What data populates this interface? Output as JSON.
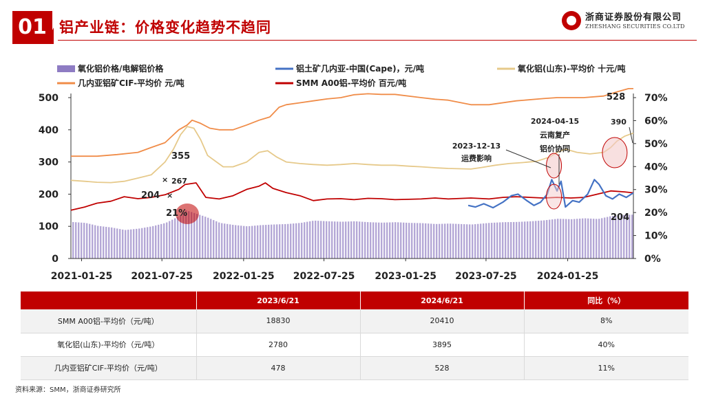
{
  "header": {
    "number": "01",
    "title": "铝产业链：价格变化趋势不趋同",
    "logo_cn": "浙商证券股份有限公司",
    "logo_en": "ZHESHANG SECURITIES CO.LTD"
  },
  "chart_data": {
    "type": "line",
    "x_tick_labels": [
      "2021-01-25",
      "2021-07-25",
      "2022-01-25",
      "2022-07-25",
      "2023-01-25",
      "2023-07-25",
      "2024-01-25"
    ],
    "x_range": [
      "2021-01-01",
      "2024-06-21"
    ],
    "ylim": [
      0,
      500
    ],
    "y_ticks": [
      0,
      100,
      200,
      300,
      400,
      500
    ],
    "y2lim": [
      0,
      70
    ],
    "y2_ticks": [
      "0%",
      "10%",
      "20%",
      "30%",
      "40%",
      "50%",
      "60%",
      "70%"
    ],
    "legend": [
      {
        "name": "氧化铝价格/电解铝价格",
        "color": "#8e7cc3",
        "kind": "bar"
      },
      {
        "name": "铝土矿几内亚-中国(Cape)，元/吨",
        "color": "#4472c4",
        "kind": "line"
      },
      {
        "name": "氧化铝(山东)-平均价 十元/吨",
        "color": "#e6c98a",
        "kind": "line"
      },
      {
        "name": "几内亚铝矿CIF-平均价 元/吨",
        "color": "#f08c48",
        "kind": "line"
      },
      {
        "name": "SMM A00铝-平均价 百元/吨",
        "color": "#c00000",
        "kind": "line"
      }
    ],
    "series": [
      {
        "name": "几内亚铝矿CIF-平均价 元/吨",
        "color": "#f08c48",
        "points": [
          [
            "2021-01-01",
            318
          ],
          [
            "2021-03-01",
            318
          ],
          [
            "2021-04-15",
            323
          ],
          [
            "2021-06-01",
            330
          ],
          [
            "2021-07-01",
            345
          ],
          [
            "2021-08-01",
            360
          ],
          [
            "2021-09-01",
            400
          ],
          [
            "2021-09-20",
            415
          ],
          [
            "2021-10-01",
            430
          ],
          [
            "2021-10-20",
            420
          ],
          [
            "2021-11-10",
            405
          ],
          [
            "2021-12-01",
            400
          ],
          [
            "2022-01-01",
            400
          ],
          [
            "2022-02-01",
            415
          ],
          [
            "2022-03-01",
            430
          ],
          [
            "2022-03-25",
            440
          ],
          [
            "2022-04-15",
            470
          ],
          [
            "2022-05-01",
            478
          ],
          [
            "2022-06-01",
            484
          ],
          [
            "2022-07-01",
            490
          ],
          [
            "2022-08-01",
            496
          ],
          [
            "2022-09-01",
            500
          ],
          [
            "2022-10-01",
            509
          ],
          [
            "2022-11-01",
            512
          ],
          [
            "2022-12-01",
            510
          ],
          [
            "2023-01-01",
            510
          ],
          [
            "2023-03-01",
            500
          ],
          [
            "2023-04-01",
            495
          ],
          [
            "2023-05-01",
            492
          ],
          [
            "2023-06-21",
            478
          ],
          [
            "2023-08-01",
            478
          ],
          [
            "2023-10-01",
            490
          ],
          [
            "2023-12-01",
            497
          ],
          [
            "2024-01-01",
            500
          ],
          [
            "2024-03-01",
            500
          ],
          [
            "2024-04-15",
            505
          ],
          [
            "2024-05-15",
            518
          ],
          [
            "2024-06-10",
            528
          ],
          [
            "2024-06-21",
            528
          ]
        ]
      },
      {
        "name": "氧化铝(山东)-平均价 十元/吨",
        "color": "#e6c98a",
        "points": [
          [
            "2021-01-01",
            243
          ],
          [
            "2021-02-01",
            240
          ],
          [
            "2021-03-01",
            237
          ],
          [
            "2021-04-01",
            236
          ],
          [
            "2021-05-01",
            240
          ],
          [
            "2021-06-01",
            250
          ],
          [
            "2021-07-01",
            260
          ],
          [
            "2021-08-01",
            300
          ],
          [
            "2021-08-20",
            340
          ],
          [
            "2021-09-05",
            385
          ],
          [
            "2021-09-20",
            410
          ],
          [
            "2021-10-05",
            405
          ],
          [
            "2021-10-20",
            370
          ],
          [
            "2021-11-05",
            320
          ],
          [
            "2021-11-25",
            300
          ],
          [
            "2021-12-10",
            285
          ],
          [
            "2022-01-01",
            285
          ],
          [
            "2022-02-01",
            300
          ],
          [
            "2022-03-01",
            330
          ],
          [
            "2022-03-20",
            335
          ],
          [
            "2022-04-10",
            315
          ],
          [
            "2022-05-01",
            300
          ],
          [
            "2022-06-01",
            295
          ],
          [
            "2022-07-01",
            292
          ],
          [
            "2022-08-01",
            290
          ],
          [
            "2022-09-01",
            292
          ],
          [
            "2022-10-01",
            295
          ],
          [
            "2022-11-01",
            292
          ],
          [
            "2022-12-01",
            290
          ],
          [
            "2023-01-01",
            290
          ],
          [
            "2023-02-01",
            287
          ],
          [
            "2023-03-01",
            285
          ],
          [
            "2023-04-01",
            282
          ],
          [
            "2023-05-01",
            280
          ],
          [
            "2023-06-21",
            278
          ],
          [
            "2023-07-15",
            283
          ],
          [
            "2023-08-15",
            290
          ],
          [
            "2023-09-15",
            295
          ],
          [
            "2023-10-15",
            298
          ],
          [
            "2023-11-15",
            302
          ],
          [
            "2023-12-15",
            315
          ],
          [
            "2024-01-01",
            330
          ],
          [
            "2024-01-20",
            340
          ],
          [
            "2024-02-15",
            330
          ],
          [
            "2024-03-15",
            325
          ],
          [
            "2024-04-15",
            330
          ],
          [
            "2024-05-01",
            345
          ],
          [
            "2024-05-15",
            365
          ],
          [
            "2024-06-01",
            380
          ],
          [
            "2024-06-21",
            390
          ]
        ]
      },
      {
        "name": "SMM A00铝-平均价 百元/吨",
        "color": "#c00000",
        "points": [
          [
            "2021-01-01",
            150
          ],
          [
            "2021-02-01",
            160
          ],
          [
            "2021-03-01",
            172
          ],
          [
            "2021-04-01",
            178
          ],
          [
            "2021-05-01",
            192
          ],
          [
            "2021-06-01",
            186
          ],
          [
            "2021-07-01",
            190
          ],
          [
            "2021-08-01",
            198
          ],
          [
            "2021-09-01",
            215
          ],
          [
            "2021-09-15",
            230
          ],
          [
            "2021-10-10",
            235
          ],
          [
            "2021-11-01",
            190
          ],
          [
            "2021-12-01",
            185
          ],
          [
            "2022-01-01",
            195
          ],
          [
            "2022-02-01",
            215
          ],
          [
            "2022-03-01",
            225
          ],
          [
            "2022-03-15",
            235
          ],
          [
            "2022-04-01",
            218
          ],
          [
            "2022-05-01",
            205
          ],
          [
            "2022-06-01",
            195
          ],
          [
            "2022-07-01",
            180
          ],
          [
            "2022-08-01",
            185
          ],
          [
            "2022-09-01",
            186
          ],
          [
            "2022-10-01",
            183
          ],
          [
            "2022-11-01",
            187
          ],
          [
            "2022-12-01",
            186
          ],
          [
            "2023-01-01",
            183
          ],
          [
            "2023-02-01",
            184
          ],
          [
            "2023-03-01",
            185
          ],
          [
            "2023-04-01",
            188
          ],
          [
            "2023-05-01",
            185
          ],
          [
            "2023-06-21",
            188
          ],
          [
            "2023-08-01",
            185
          ],
          [
            "2023-09-01",
            190
          ],
          [
            "2023-10-01",
            192
          ],
          [
            "2023-11-01",
            190
          ],
          [
            "2023-12-01",
            188
          ],
          [
            "2024-01-01",
            190
          ],
          [
            "2024-02-01",
            188
          ],
          [
            "2024-03-01",
            190
          ],
          [
            "2024-04-01",
            200
          ],
          [
            "2024-05-01",
            210
          ],
          [
            "2024-06-01",
            207
          ],
          [
            "2024-06-21",
            204
          ]
        ]
      },
      {
        "name": "铝土矿几内亚-中国(Cape)，元/吨",
        "color": "#4472c4",
        "points": [
          [
            "2023-06-15",
            165
          ],
          [
            "2023-07-01",
            160
          ],
          [
            "2023-07-20",
            170
          ],
          [
            "2023-08-10",
            158
          ],
          [
            "2023-09-01",
            175
          ],
          [
            "2023-09-20",
            195
          ],
          [
            "2023-10-05",
            200
          ],
          [
            "2023-10-25",
            180
          ],
          [
            "2023-11-10",
            165
          ],
          [
            "2023-11-25",
            175
          ],
          [
            "2023-12-10",
            200
          ],
          [
            "2023-12-20",
            245
          ],
          [
            "2024-01-01",
            210
          ],
          [
            "2024-01-10",
            240
          ],
          [
            "2024-01-20",
            160
          ],
          [
            "2024-02-05",
            180
          ],
          [
            "2024-02-20",
            175
          ],
          [
            "2024-03-10",
            200
          ],
          [
            "2024-03-25",
            245
          ],
          [
            "2024-04-05",
            230
          ],
          [
            "2024-04-20",
            195
          ],
          [
            "2024-05-05",
            185
          ],
          [
            "2024-05-20",
            200
          ],
          [
            "2024-06-05",
            190
          ],
          [
            "2024-06-21",
            204
          ]
        ]
      }
    ],
    "bars_pct": [
      [
        "2021-01-01",
        15.9
      ],
      [
        "2021-02-01",
        15.5
      ],
      [
        "2021-03-01",
        14.2
      ],
      [
        "2021-04-01",
        13.5
      ],
      [
        "2021-05-01",
        12.4
      ],
      [
        "2021-06-01",
        13.0
      ],
      [
        "2021-07-01",
        14.0
      ],
      [
        "2021-08-01",
        15.5
      ],
      [
        "2021-09-01",
        18.5
      ],
      [
        "2021-09-15",
        21.0
      ],
      [
        "2021-10-01",
        20.0
      ],
      [
        "2021-11-01",
        18.0
      ],
      [
        "2021-12-01",
        15.5
      ],
      [
        "2022-01-01",
        14.6
      ],
      [
        "2022-02-01",
        14.0
      ],
      [
        "2022-03-01",
        14.5
      ],
      [
        "2022-04-01",
        14.8
      ],
      [
        "2022-05-01",
        15.0
      ],
      [
        "2022-06-01",
        15.5
      ],
      [
        "2022-07-01",
        16.5
      ],
      [
        "2022-08-01",
        16.2
      ],
      [
        "2022-09-01",
        16.0
      ],
      [
        "2022-10-01",
        16.2
      ],
      [
        "2022-11-01",
        15.8
      ],
      [
        "2022-12-01",
        15.6
      ],
      [
        "2023-01-01",
        15.8
      ],
      [
        "2023-02-01",
        15.5
      ],
      [
        "2023-03-01",
        15.4
      ],
      [
        "2023-04-01",
        15.0
      ],
      [
        "2023-05-01",
        15.2
      ],
      [
        "2023-06-21",
        14.8
      ],
      [
        "2023-08-01",
        15.5
      ],
      [
        "2023-09-01",
        15.8
      ],
      [
        "2023-10-01",
        15.9
      ],
      [
        "2023-11-01",
        16.2
      ],
      [
        "2023-12-01",
        16.6
      ],
      [
        "2024-01-01",
        17.3
      ],
      [
        "2024-02-01",
        17.1
      ],
      [
        "2024-03-01",
        17.5
      ],
      [
        "2024-04-01",
        17.2
      ],
      [
        "2024-05-01",
        18.5
      ],
      [
        "2024-06-01",
        19.0
      ],
      [
        "2024-06-21",
        19.1
      ]
    ],
    "annotations": [
      {
        "text": "528",
        "x": "2024-06-10",
        "y": 528
      },
      {
        "text": "390",
        "x": "2024-06-21",
        "y": 390
      },
      {
        "text": "355",
        "x": "2021-08-15",
        "y": 355
      },
      {
        "text": "267",
        "x": "2021-07-20",
        "y": 267
      },
      {
        "text": "204",
        "x": "2021-07-15",
        "y": 204
      },
      {
        "text": "204",
        "x": "2024-06-21",
        "y": 204
      },
      {
        "text": "21%",
        "x": "2021-09-15",
        "y2": 21
      }
    ],
    "notes": [
      {
        "lines": [
          "2023-12-13",
          "运费影响"
        ]
      },
      {
        "lines": [
          "2024-04-15",
          "云南复产",
          "铝价协同"
        ]
      }
    ]
  },
  "table": {
    "headers": [
      "",
      "2023/6/21",
      "2024/6/21",
      "同比（%）"
    ],
    "rows": [
      [
        "SMM A00铝-平均价（元/吨）",
        "18830",
        "20410",
        "8%"
      ],
      [
        "氧化铝(山东)-平均价（元/吨）",
        "2780",
        "3895",
        "40%"
      ],
      [
        "几内亚铝矿CIF-平均价（元/吨）",
        "478",
        "528",
        "11%"
      ]
    ]
  },
  "source": "资料来源：SMM，浙商证券研究所"
}
